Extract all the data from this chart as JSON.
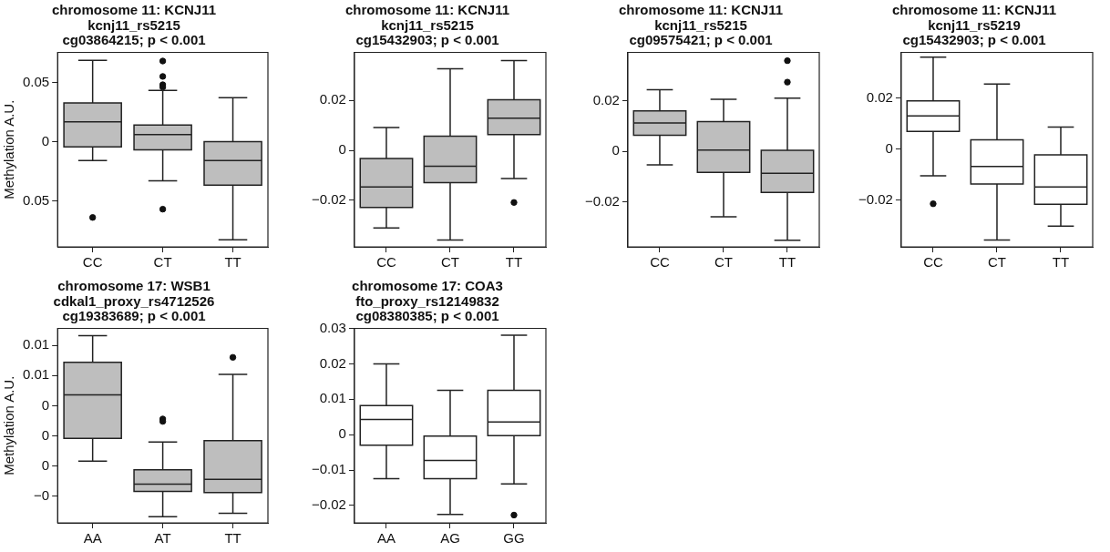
{
  "chart_data": [
    {
      "type": "box",
      "title": "chromosome 11: KCNJ11\nkcnj11_rs5215\ncg03864215; p < 0.001",
      "ylabel": "Methylation A.U.",
      "categories": [
        "CC",
        "CT",
        "TT"
      ],
      "ylim": [
        -0.0888,
        0.0753
      ],
      "yticks": [
        {
          "value": -0.05,
          "label": "0.05"
        },
        0,
        0.05
      ],
      "grid": false,
      "legend": false,
      "series": [
        {
          "color": "#bebebe",
          "boxes": [
            {
              "low": -0.016,
              "q1": -0.0045,
              "median": 0.0166,
              "q3": 0.0326,
              "high": 0.0685,
              "outliers": [
                -0.064
              ]
            },
            {
              "low": -0.033,
              "q1": -0.007,
              "median": 0.0059,
              "q3": 0.014,
              "high": 0.0433,
              "outliers": [
                0.068,
                0.055,
                0.048,
                0.046,
                -0.057
              ]
            },
            {
              "low": -0.0829,
              "q1": -0.0368,
              "median": -0.016,
              "q3": 0,
              "high": 0.037
            }
          ]
        }
      ]
    },
    {
      "type": "box",
      "title": "chromosome 11: KCNJ11\nkcnj11_rs5215\ncg15432903; p < 0.001",
      "categories": [
        "CC",
        "CT",
        "TT"
      ],
      "ylim": [
        -0.0387,
        0.0393
      ],
      "yticks": [
        {
          "value": -0.02,
          "label": "−0.02"
        },
        0,
        0.02
      ],
      "grid": false,
      "legend": false,
      "series": [
        {
          "color": "#bebebe",
          "boxes": [
            {
              "low": -0.0311,
              "q1": -0.0229,
              "median": -0.0147,
              "q3": -0.0033,
              "high": 0.0092
            },
            {
              "low": -0.036,
              "q1": -0.0129,
              "median": -0.0064,
              "q3": 0.0057,
              "high": 0.0327
            },
            {
              "low": -0.0113,
              "q1": 0.0063,
              "median": 0.0129,
              "q3": 0.0203,
              "high": 0.036,
              "outliers": [
                -0.0209
              ]
            }
          ]
        }
      ]
    },
    {
      "type": "box",
      "title": "chromosome 11: KCNJ11\nkcnj11_rs5215\ncg09575421; p < 0.001",
      "categories": [
        "CC",
        "CT",
        "TT"
      ],
      "ylim": [
        -0.0379,
        0.0393
      ],
      "yticks": [
        {
          "value": -0.02,
          "label": "−0.02"
        },
        0,
        0.02
      ],
      "grid": false,
      "legend": false,
      "series": [
        {
          "color": "#bebebe",
          "boxes": [
            {
              "low": -0.0054,
              "q1": 0.0064,
              "median": 0.0113,
              "q3": 0.0161,
              "high": 0.0245
            },
            {
              "low": -0.026,
              "q1": -0.0083,
              "median": 0.0005,
              "q3": 0.0118,
              "high": 0.0207
            },
            {
              "low": -0.0353,
              "q1": -0.0163,
              "median": -0.0087,
              "q3": 0.0004,
              "high": 0.0211,
              "outliers": [
                0.036,
                0.0275
              ]
            }
          ]
        }
      ]
    },
    {
      "type": "box",
      "title": "chromosome 11: KCNJ11\nkcnj11_rs5219\ncg15432903; p < 0.001",
      "categories": [
        "CC",
        "CT",
        "TT"
      ],
      "ylim": [
        -0.0384,
        0.0379
      ],
      "yticks": [
        {
          "value": -0.02,
          "label": "−0.02"
        },
        0,
        0.02
      ],
      "grid": false,
      "legend": false,
      "series": [
        {
          "color": "#ffffff",
          "boxes": [
            {
              "low": -0.0105,
              "q1": 0.0069,
              "median": 0.013,
              "q3": 0.0189,
              "high": 0.036,
              "outliers": [
                -0.0215
              ]
            },
            {
              "low": -0.0357,
              "q1": -0.0137,
              "median": -0.0069,
              "q3": 0.0036,
              "high": 0.0255
            },
            {
              "low": -0.0303,
              "q1": -0.0217,
              "median": -0.0149,
              "q3": -0.0023,
              "high": 0.0086
            }
          ]
        }
      ]
    },
    {
      "type": "box",
      "title": "chromosome 17: WSB1\ncdkal1_proxy_rs4712526\ncg19383689; p < 0.001",
      "ylabel": "Methylation A.U.",
      "categories": [
        "AA",
        "AT",
        "TT"
      ],
      "ylim": [
        -0.0047,
        0.0114
      ],
      "yticks": [
        {
          "value": -0.0025,
          "label": "−0"
        },
        {
          "value": 0,
          "label": "0"
        },
        {
          "value": 0.0025,
          "label": "0"
        },
        {
          "value": 0.005,
          "label": "0"
        },
        {
          "value": 0.0075,
          "label": "0.01"
        },
        {
          "value": 0.01,
          "label": "0.01"
        }
      ],
      "grid": false,
      "legend": false,
      "series": [
        {
          "color": "#bebebe",
          "boxes": [
            {
              "low": 0.0004,
              "q1": 0.0023,
              "median": 0.0059,
              "q3": 0.0086,
              "high": 0.0108
            },
            {
              "low": -0.0042,
              "q1": -0.0021,
              "median": -0.0015,
              "q3": -0.0003,
              "high": 0.002,
              "outliers": [
                0.0039,
                0.0037
              ]
            },
            {
              "low": -0.0039,
              "q1": -0.0022,
              "median": -0.0011,
              "q3": 0.0021,
              "high": 0.0076,
              "outliers": [
                0.009
              ]
            }
          ]
        }
      ]
    },
    {
      "type": "box",
      "title": "chromosome 17: COA3\nfto_proxy_rs12149832\ncg08380385; p < 0.001",
      "categories": [
        "AA",
        "AG",
        "GG"
      ],
      "ylim": [
        -0.0249,
        0.03
      ],
      "yticks": [
        {
          "value": -0.02,
          "label": "−0.02"
        },
        {
          "value": -0.01,
          "label": "−0.01"
        },
        0,
        0.01,
        0.02,
        0.03
      ],
      "grid": false,
      "legend": false,
      "series": [
        {
          "color": "#ffffff",
          "boxes": [
            {
              "low": -0.0124,
              "q1": -0.003,
              "median": 0.0043,
              "q3": 0.0082,
              "high": 0.02
            },
            {
              "low": -0.0225,
              "q1": -0.0124,
              "median": -0.0073,
              "q3": -0.0004,
              "high": 0.0125
            },
            {
              "low": -0.0139,
              "q1": -0.0003,
              "median": 0.0036,
              "q3": 0.0125,
              "high": 0.0281,
              "outliers": [
                -0.0227
              ]
            }
          ]
        }
      ]
    }
  ]
}
